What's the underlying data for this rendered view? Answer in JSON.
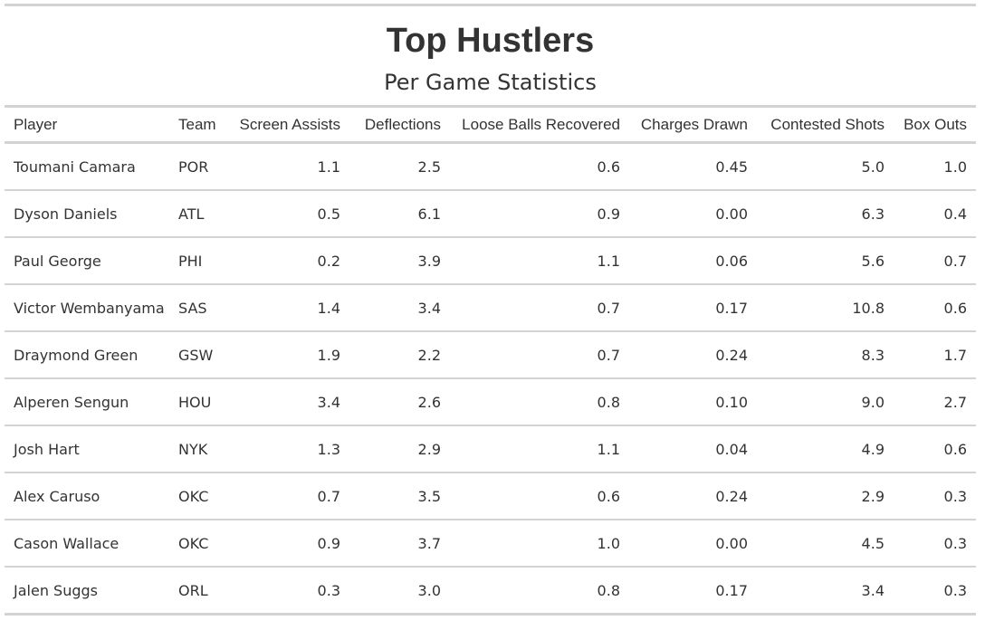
{
  "chart_data": {
    "type": "table",
    "title": "Top Hustlers",
    "subtitle": "Per Game Statistics",
    "columns": [
      "Player",
      "Team",
      "Screen Assists",
      "Deflections",
      "Loose Balls Recovered",
      "Charges Drawn",
      "Contested Shots",
      "Box Outs"
    ],
    "rows": [
      [
        "Toumani Camara",
        "POR",
        "1.1",
        "2.5",
        "0.6",
        "0.45",
        "5.0",
        "1.0"
      ],
      [
        "Dyson Daniels",
        "ATL",
        "0.5",
        "6.1",
        "0.9",
        "0.00",
        "6.3",
        "0.4"
      ],
      [
        "Paul George",
        "PHI",
        "0.2",
        "3.9",
        "1.1",
        "0.06",
        "5.6",
        "0.7"
      ],
      [
        "Victor Wembanyama",
        "SAS",
        "1.4",
        "3.4",
        "0.7",
        "0.17",
        "10.8",
        "0.6"
      ],
      [
        "Draymond Green",
        "GSW",
        "1.9",
        "2.2",
        "0.7",
        "0.24",
        "8.3",
        "1.7"
      ],
      [
        "Alperen Sengun",
        "HOU",
        "3.4",
        "2.6",
        "0.8",
        "0.10",
        "9.0",
        "2.7"
      ],
      [
        "Josh Hart",
        "NYK",
        "1.3",
        "2.9",
        "1.1",
        "0.04",
        "4.9",
        "0.6"
      ],
      [
        "Alex Caruso",
        "OKC",
        "0.7",
        "3.5",
        "0.6",
        "0.24",
        "2.9",
        "0.3"
      ],
      [
        "Cason Wallace",
        "OKC",
        "0.9",
        "3.7",
        "1.0",
        "0.00",
        "4.5",
        "0.3"
      ],
      [
        "Jalen Suggs",
        "ORL",
        "0.3",
        "3.0",
        "0.8",
        "0.17",
        "3.4",
        "0.3"
      ]
    ]
  }
}
